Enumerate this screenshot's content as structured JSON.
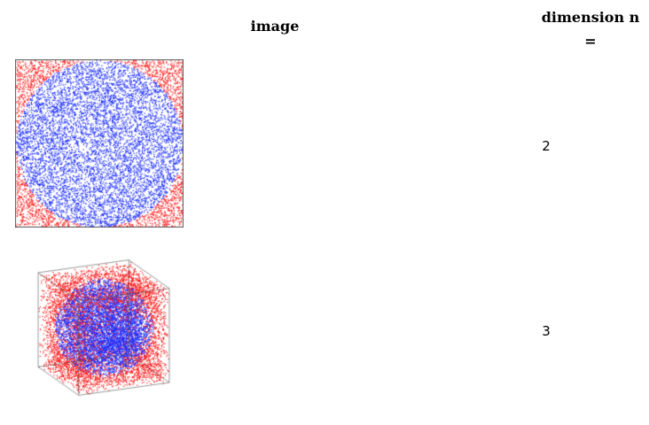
{
  "table": {
    "headers": {
      "image": "image",
      "dimension": "dimension n ="
    },
    "rows": [
      {
        "dimension": "2"
      },
      {
        "dimension": "3"
      }
    ]
  },
  "colors": {
    "inside": "#1a2cff",
    "outside": "#ff1a1a",
    "frame": "#555555"
  }
}
